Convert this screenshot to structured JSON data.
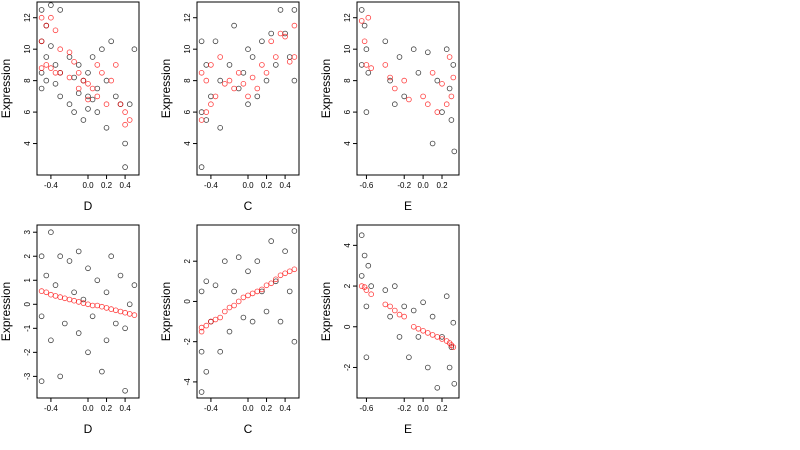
{
  "chart_data": [
    {
      "type": "scatter",
      "xlabel": "D",
      "ylabel": "Expression",
      "xlim": [
        -0.55,
        0.55
      ],
      "ylim": [
        2,
        13
      ],
      "xticks": [
        -0.4,
        0.0,
        0.2,
        0.4
      ],
      "xtick_labels": [
        "-0.4",
        "0.0",
        "0.2",
        "0.4"
      ],
      "yticks": [
        4,
        6,
        8,
        10,
        12
      ],
      "ytick_labels": [
        "4",
        "6",
        "8",
        "10",
        "12"
      ],
      "series": [
        {
          "color": "#000000",
          "x": [
            -0.5,
            -0.5,
            -0.5,
            -0.5,
            -0.45,
            -0.45,
            -0.45,
            -0.4,
            -0.4,
            -0.35,
            -0.35,
            -0.3,
            -0.3,
            -0.3,
            -0.2,
            -0.2,
            -0.15,
            -0.15,
            -0.1,
            -0.1,
            -0.05,
            -0.05,
            0.0,
            0.0,
            0.0,
            0.05,
            0.05,
            0.1,
            0.1,
            0.15,
            0.2,
            0.2,
            0.25,
            0.3,
            0.35,
            0.4,
            0.4,
            0.45,
            0.5
          ],
          "y": [
            12.5,
            10.5,
            8.5,
            7.5,
            11.5,
            9.5,
            8.0,
            12.8,
            10.2,
            9.0,
            7.8,
            12.5,
            8.5,
            7.0,
            9.5,
            6.5,
            8.2,
            6.0,
            9.0,
            7.2,
            8.0,
            5.5,
            8.5,
            7.0,
            6.2,
            9.5,
            6.8,
            7.5,
            6.0,
            10.0,
            8.0,
            5.0,
            10.5,
            7.0,
            6.5,
            4.0,
            2.5,
            6.5,
            10.0
          ]
        },
        {
          "color": "#ff0000",
          "x": [
            -0.5,
            -0.5,
            -0.5,
            -0.45,
            -0.45,
            -0.4,
            -0.4,
            -0.35,
            -0.35,
            -0.3,
            -0.3,
            -0.2,
            -0.2,
            -0.15,
            -0.1,
            -0.1,
            -0.05,
            0.0,
            0.0,
            0.05,
            0.1,
            0.1,
            0.15,
            0.2,
            0.25,
            0.3,
            0.35,
            0.4,
            0.4,
            0.45
          ],
          "y": [
            12.0,
            10.5,
            8.8,
            11.5,
            9.0,
            12.0,
            8.8,
            11.2,
            8.5,
            10.0,
            8.5,
            9.8,
            8.2,
            9.2,
            8.5,
            7.5,
            8.0,
            7.8,
            6.8,
            7.5,
            9.0,
            7.0,
            8.5,
            6.5,
            8.0,
            9.0,
            6.5,
            6.0,
            5.2,
            5.5
          ]
        }
      ]
    },
    {
      "type": "scatter",
      "xlabel": "C",
      "ylabel": "Expression",
      "xlim": [
        -0.55,
        0.55
      ],
      "ylim": [
        2,
        13
      ],
      "xticks": [
        -0.4,
        0.0,
        0.2,
        0.4
      ],
      "xtick_labels": [
        "-0.4",
        "0.0",
        "0.2",
        "0.4"
      ],
      "yticks": [
        4,
        6,
        8,
        10,
        12
      ],
      "ytick_labels": [
        "4",
        "6",
        "8",
        "10",
        "12"
      ],
      "series": [
        {
          "color": "#000000",
          "x": [
            -0.5,
            -0.5,
            -0.5,
            -0.45,
            -0.45,
            -0.4,
            -0.35,
            -0.3,
            -0.3,
            -0.2,
            -0.15,
            -0.1,
            -0.05,
            0.0,
            0.0,
            0.05,
            0.1,
            0.15,
            0.2,
            0.25,
            0.3,
            0.35,
            0.4,
            0.45,
            0.5,
            0.5
          ],
          "y": [
            10.5,
            6.0,
            2.5,
            9.0,
            5.5,
            7.0,
            10.5,
            8.0,
            5.0,
            9.0,
            11.5,
            7.5,
            8.5,
            10.0,
            6.5,
            9.5,
            7.0,
            10.5,
            8.0,
            11.0,
            9.0,
            12.5,
            11.0,
            9.5,
            12.5,
            8.0
          ]
        },
        {
          "color": "#ff0000",
          "x": [
            -0.5,
            -0.5,
            -0.45,
            -0.45,
            -0.4,
            -0.4,
            -0.35,
            -0.3,
            -0.25,
            -0.2,
            -0.15,
            -0.1,
            -0.05,
            0.0,
            0.05,
            0.1,
            0.15,
            0.2,
            0.25,
            0.3,
            0.35,
            0.4,
            0.45,
            0.5,
            0.5
          ],
          "y": [
            8.5,
            5.5,
            8.0,
            6.0,
            9.0,
            6.5,
            7.0,
            9.5,
            7.8,
            8.0,
            7.5,
            8.5,
            7.8,
            7.0,
            8.2,
            7.5,
            9.0,
            8.5,
            10.5,
            9.5,
            11.0,
            10.8,
            9.2,
            11.5,
            9.5
          ]
        }
      ]
    },
    {
      "type": "scatter",
      "xlabel": "E",
      "ylabel": "Expression",
      "xlim": [
        -0.7,
        0.38
      ],
      "ylim": [
        2,
        13
      ],
      "xticks": [
        -0.6,
        -0.2,
        0.0,
        0.2
      ],
      "xtick_labels": [
        "-0.6",
        "-0.2",
        "0.0",
        "0.2"
      ],
      "yticks": [
        4,
        6,
        8,
        10,
        12
      ],
      "ytick_labels": [
        "4",
        "6",
        "8",
        "10",
        "12"
      ],
      "series": [
        {
          "color": "#000000",
          "x": [
            -0.65,
            -0.65,
            -0.62,
            -0.6,
            -0.6,
            -0.58,
            -0.4,
            -0.35,
            -0.3,
            -0.25,
            -0.2,
            -0.1,
            -0.05,
            0.05,
            0.1,
            0.15,
            0.2,
            0.25,
            0.28,
            0.3,
            0.32,
            0.33
          ],
          "y": [
            12.5,
            9.0,
            11.5,
            10.0,
            6.0,
            8.5,
            10.5,
            8.0,
            6.5,
            9.5,
            7.0,
            10.0,
            8.5,
            9.8,
            4.0,
            8.0,
            6.0,
            10.0,
            7.5,
            5.5,
            9.0,
            3.5
          ]
        },
        {
          "color": "#ff0000",
          "x": [
            -0.65,
            -0.62,
            -0.6,
            -0.58,
            -0.55,
            -0.4,
            -0.35,
            -0.3,
            -0.2,
            -0.15,
            0.0,
            0.05,
            0.1,
            0.15,
            0.2,
            0.25,
            0.28,
            0.3,
            0.32
          ],
          "y": [
            11.8,
            10.5,
            9.0,
            12.0,
            8.8,
            9.0,
            8.2,
            7.5,
            8.0,
            6.8,
            7.0,
            6.5,
            8.5,
            6.0,
            7.8,
            6.5,
            9.5,
            7.0,
            8.2
          ]
        }
      ]
    },
    {
      "type": "scatter",
      "xlabel": "D",
      "ylabel": "Expression",
      "xlim": [
        -0.55,
        0.55
      ],
      "ylim": [
        -3.9,
        3.3
      ],
      "xticks": [
        -0.4,
        0.0,
        0.2,
        0.4
      ],
      "xtick_labels": [
        "-0.4",
        "0.0",
        "0.2",
        "0.4"
      ],
      "yticks": [
        -3,
        -2,
        -1,
        0,
        1,
        2,
        3
      ],
      "ytick_labels": [
        "-3",
        "-2",
        "-1",
        "0",
        "1",
        "2",
        "3"
      ],
      "series": [
        {
          "color": "#000000",
          "x": [
            -0.5,
            -0.5,
            -0.5,
            -0.45,
            -0.4,
            -0.4,
            -0.35,
            -0.3,
            -0.3,
            -0.25,
            -0.2,
            -0.15,
            -0.1,
            -0.1,
            -0.05,
            0.0,
            0.0,
            0.05,
            0.1,
            0.15,
            0.2,
            0.2,
            0.25,
            0.3,
            0.35,
            0.4,
            0.4,
            0.45,
            0.5
          ],
          "y": [
            2.0,
            -0.5,
            -3.2,
            1.2,
            3.0,
            -1.5,
            0.8,
            2.0,
            -3.0,
            -0.8,
            1.8,
            0.5,
            2.2,
            -1.2,
            0.2,
            1.5,
            -2.0,
            -0.5,
            1.0,
            -2.8,
            0.5,
            -1.5,
            2.0,
            -0.8,
            1.2,
            -1.0,
            -3.6,
            0.0,
            0.8
          ]
        },
        {
          "color": "#ff0000",
          "x": [
            -0.5,
            -0.45,
            -0.4,
            -0.35,
            -0.3,
            -0.25,
            -0.2,
            -0.15,
            -0.1,
            -0.05,
            0.0,
            0.05,
            0.1,
            0.15,
            0.2,
            0.25,
            0.3,
            0.35,
            0.4,
            0.45,
            0.5
          ],
          "y": [
            0.55,
            0.5,
            0.4,
            0.35,
            0.3,
            0.25,
            0.2,
            0.15,
            0.1,
            0.05,
            0.0,
            -0.05,
            -0.05,
            -0.1,
            -0.15,
            -0.2,
            -0.25,
            -0.3,
            -0.35,
            -0.4,
            -0.45
          ]
        }
      ]
    },
    {
      "type": "scatter",
      "xlabel": "C",
      "ylabel": "Expression",
      "xlim": [
        -0.55,
        0.55
      ],
      "ylim": [
        -4.8,
        3.8
      ],
      "xticks": [
        -0.4,
        0.0,
        0.2,
        0.4
      ],
      "xtick_labels": [
        "-0.4",
        "0.0",
        "0.2",
        "0.4"
      ],
      "yticks": [
        -4,
        -2,
        0,
        2
      ],
      "ytick_labels": [
        "-4",
        "-2",
        "0",
        "2"
      ],
      "series": [
        {
          "color": "#000000",
          "x": [
            -0.5,
            -0.5,
            -0.5,
            -0.45,
            -0.45,
            -0.4,
            -0.35,
            -0.3,
            -0.25,
            -0.2,
            -0.15,
            -0.1,
            -0.05,
            0.0,
            0.05,
            0.1,
            0.15,
            0.2,
            0.25,
            0.3,
            0.35,
            0.4,
            0.45,
            0.5,
            0.5
          ],
          "y": [
            0.5,
            -2.5,
            -4.5,
            1.0,
            -3.5,
            -1.0,
            0.8,
            -2.5,
            2.0,
            -1.5,
            0.5,
            2.2,
            -0.8,
            1.5,
            -1.0,
            2.0,
            0.5,
            -0.5,
            3.0,
            1.0,
            -1.0,
            2.5,
            0.5,
            3.5,
            -2.0
          ]
        },
        {
          "color": "#ff0000",
          "x": [
            -0.5,
            -0.5,
            -0.45,
            -0.4,
            -0.35,
            -0.3,
            -0.25,
            -0.2,
            -0.15,
            -0.1,
            -0.05,
            0.0,
            0.05,
            0.1,
            0.15,
            0.2,
            0.25,
            0.3,
            0.35,
            0.4,
            0.45,
            0.5
          ],
          "y": [
            -1.5,
            -1.3,
            -1.2,
            -1.0,
            -0.9,
            -0.8,
            -0.5,
            -0.3,
            -0.2,
            0.0,
            0.2,
            0.3,
            0.4,
            0.5,
            0.6,
            0.8,
            0.9,
            1.1,
            1.3,
            1.4,
            1.5,
            1.6
          ]
        }
      ]
    },
    {
      "type": "scatter",
      "xlabel": "E",
      "ylabel": "Expression",
      "xlim": [
        -0.7,
        0.38
      ],
      "ylim": [
        -3.5,
        5
      ],
      "xticks": [
        -0.6,
        -0.2,
        0.0,
        0.2
      ],
      "xtick_labels": [
        "-0.6",
        "-0.2",
        "0.0",
        "0.2"
      ],
      "yticks": [
        -2,
        0,
        2,
        4
      ],
      "ytick_labels": [
        "-2",
        "0",
        "2",
        "4"
      ],
      "series": [
        {
          "color": "#000000",
          "x": [
            -0.65,
            -0.65,
            -0.62,
            -0.6,
            -0.6,
            -0.58,
            -0.55,
            -0.4,
            -0.35,
            -0.3,
            -0.25,
            -0.2,
            -0.15,
            -0.1,
            -0.05,
            0.0,
            0.05,
            0.1,
            0.15,
            0.2,
            0.25,
            0.28,
            0.3,
            0.32,
            0.33
          ],
          "y": [
            4.5,
            2.5,
            3.5,
            1.0,
            -1.5,
            3.0,
            2.0,
            1.8,
            0.5,
            2.0,
            -0.5,
            1.0,
            -1.5,
            0.8,
            -0.5,
            1.2,
            -2.0,
            0.5,
            -3.0,
            -0.5,
            1.5,
            -2.0,
            -1.0,
            0.2,
            -2.8
          ]
        },
        {
          "color": "#ff0000",
          "x": [
            -0.65,
            -0.62,
            -0.6,
            -0.55,
            -0.4,
            -0.35,
            -0.3,
            -0.25,
            -0.2,
            -0.1,
            -0.05,
            0.0,
            0.05,
            0.1,
            0.15,
            0.2,
            0.25,
            0.28,
            0.3,
            0.32
          ],
          "y": [
            2.0,
            1.95,
            1.8,
            1.6,
            1.1,
            1.0,
            0.8,
            0.6,
            0.5,
            0.0,
            -0.1,
            -0.2,
            -0.3,
            -0.4,
            -0.5,
            -0.6,
            -0.7,
            -0.8,
            -0.9,
            -1.0
          ]
        }
      ]
    }
  ]
}
